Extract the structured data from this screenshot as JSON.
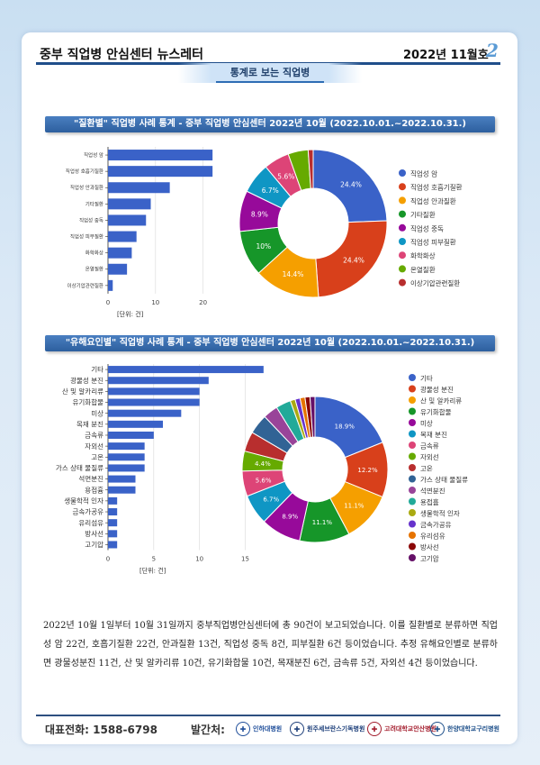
{
  "header": {
    "title": "중부 직업병 안심센터 뉴스레터",
    "date": "2022년 11월호",
    "page": "2"
  },
  "banner": "통계로 보는 직업병",
  "section1_title": "\"질환별\" 직업병 사례 통계 - 중부 직업병 안심센터 2022년 10월 (2022.10.01.~2022.10.31.)",
  "section2_title": "\"유해요인별\" 직업병 사례 통계 - 중부 직업병 안심센터 2022년 10월 (2022.10.01.~2022.10.31.)",
  "chart_data": [
    {
      "type": "bar",
      "orientation": "horizontal",
      "categories": [
        "직업성 암",
        "직업성 호흡기질환",
        "직업성 안과질환",
        "기타질환",
        "직업성 중독",
        "직업성 피부질환",
        "화학화상",
        "온열질환",
        "이상기압관련질환"
      ],
      "values": [
        22,
        22,
        13,
        9,
        8,
        6,
        5,
        4,
        1
      ],
      "xlim": [
        0,
        25
      ],
      "xticks": [
        0,
        10,
        20
      ],
      "unit_label": "[단위: 건]",
      "color": "#3a62c8"
    },
    {
      "type": "pie",
      "donut": true,
      "labels": [
        "직업성 암",
        "직업성 호흡기질환",
        "직업성 안과질환",
        "기타질환",
        "직업성 중독",
        "직업성 피부질환",
        "화학화상",
        "온열질환",
        "이상기압관련질환"
      ],
      "values": [
        24.4,
        24.4,
        14.4,
        10.0,
        8.9,
        6.7,
        5.6,
        4.4,
        1.1
      ],
      "slice_labels": [
        "24.4%",
        "24.4%",
        "14.4%",
        "10%",
        "8.9%",
        "6.7%",
        "5.6%",
        "",
        ""
      ],
      "colors": [
        "#3a62c8",
        "#d8401b",
        "#f59f00",
        "#169629",
        "#970a9a",
        "#0f96c4",
        "#dd4477",
        "#66aa00",
        "#b82e2e"
      ],
      "legend_position": "right"
    },
    {
      "type": "bar",
      "orientation": "horizontal",
      "categories": [
        "기타",
        "광물성 분진",
        "산 및 알카리류",
        "유기화합물",
        "미상",
        "목재 분진",
        "금속류",
        "자외선",
        "고온",
        "가스 상태 물질류",
        "석면분진",
        "용접흄",
        "생물학적 인자",
        "금속가공유",
        "유리섬유",
        "방사선",
        "고기압"
      ],
      "values": [
        17,
        11,
        10,
        10,
        8,
        6,
        5,
        4,
        4,
        4,
        3,
        3,
        1,
        1,
        1,
        1,
        1
      ],
      "xlim": [
        0,
        18
      ],
      "xticks": [
        0,
        5,
        10,
        15
      ],
      "unit_label": "[단위: 건]",
      "color": "#3a62c8"
    },
    {
      "type": "pie",
      "donut": true,
      "labels": [
        "기타",
        "광물성 분진",
        "산 및 알카리류",
        "유기화합물",
        "미상",
        "목재 분진",
        "금속류",
        "자외선",
        "고온",
        "가스 상태 물질류",
        "석면분진",
        "용접흄",
        "생물학적 인자",
        "금속가공유",
        "유리섬유",
        "방사선",
        "고기압"
      ],
      "values": [
        18.9,
        12.2,
        11.1,
        11.1,
        8.9,
        6.7,
        5.6,
        4.4,
        4.4,
        4.4,
        3.3,
        3.3,
        1.1,
        1.1,
        1.1,
        1.1,
        1.1
      ],
      "slice_labels": [
        "18.9%",
        "12.2%",
        "11.1%",
        "11.1%",
        "8.9%",
        "6.7%",
        "5.6%",
        "4.4%",
        "",
        "",
        "",
        "",
        "",
        "",
        "",
        "",
        ""
      ],
      "colors": [
        "#3a62c8",
        "#d8401b",
        "#f59f00",
        "#169629",
        "#970a9a",
        "#0f96c4",
        "#dd4477",
        "#66aa00",
        "#b82e2e",
        "#316395",
        "#994499",
        "#22aa99",
        "#aaaa11",
        "#6633cc",
        "#e67300",
        "#8b0707",
        "#651067"
      ],
      "legend_position": "right"
    }
  ],
  "paragraph": "2022년 10월 1일부터 10월 31일까지 중부직업병안심센터에 총 90건이 보고되었습니다. 이를 질환별로 분류하면 직업성 암 22건, 호흡기질환 22건, 안과질환 13건, 직업성 중독 8건, 피부질환 6건 등이었습니다. 추정 유해요인별로 분류하면 광물성분진 11건, 산 및 알카리류 10건, 유기화합물 10건, 목재분진 6건, 금속류 5건, 자외선 4건 등이었습니다.",
  "footer": {
    "tel": "대표전화:  1588-6798",
    "publisher": "발간처:",
    "logos": [
      {
        "name": "인하대병원",
        "color": "#1f4e9a"
      },
      {
        "name": "원주세브란스기독병원",
        "color": "#1d3f7a"
      },
      {
        "name": "고려대학교안산병원",
        "color": "#a31c2c"
      },
      {
        "name": "한양대학교구리병원",
        "color": "#1d4f8a"
      }
    ]
  }
}
